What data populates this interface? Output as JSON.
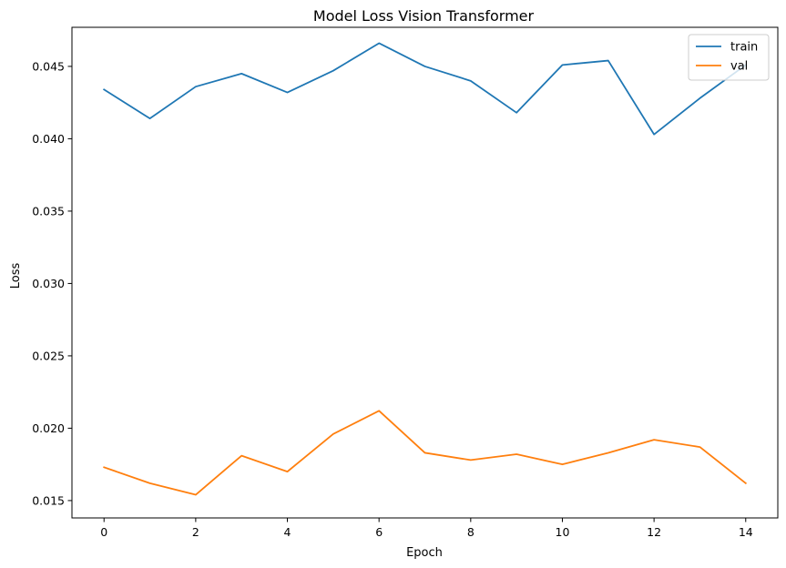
{
  "chart_data": {
    "type": "line",
    "title": "Model Loss Vision Transformer",
    "xlabel": "Epoch",
    "ylabel": "Loss",
    "x": [
      0,
      1,
      2,
      3,
      4,
      5,
      6,
      7,
      8,
      9,
      10,
      11,
      12,
      13,
      14
    ],
    "xlim": [
      -0.7,
      14.7
    ],
    "ylim": [
      0.0138,
      0.0477
    ],
    "xticks": [
      0,
      2,
      4,
      6,
      8,
      10,
      12,
      14
    ],
    "xtick_labels": [
      "0",
      "2",
      "4",
      "6",
      "8",
      "10",
      "12",
      "14"
    ],
    "yticks": [
      0.015,
      0.02,
      0.025,
      0.03,
      0.035,
      0.04,
      0.045
    ],
    "ytick_labels": [
      "0.015",
      "0.020",
      "0.025",
      "0.030",
      "0.035",
      "0.040",
      "0.045"
    ],
    "grid": false,
    "legend_position": "top-right",
    "series": [
      {
        "name": "train",
        "color": "#1f77b4",
        "values": [
          0.0434,
          0.0414,
          0.0436,
          0.0445,
          0.0432,
          0.0447,
          0.0466,
          0.045,
          0.044,
          0.0418,
          0.0451,
          0.0454,
          0.0403,
          0.0428,
          0.0451
        ]
      },
      {
        "name": "val",
        "color": "#ff7f0e",
        "values": [
          0.0173,
          0.0162,
          0.0154,
          0.0181,
          0.017,
          0.0196,
          0.0212,
          0.0183,
          0.0178,
          0.0182,
          0.0175,
          0.0183,
          0.0192,
          0.0187,
          0.0162
        ]
      }
    ]
  }
}
